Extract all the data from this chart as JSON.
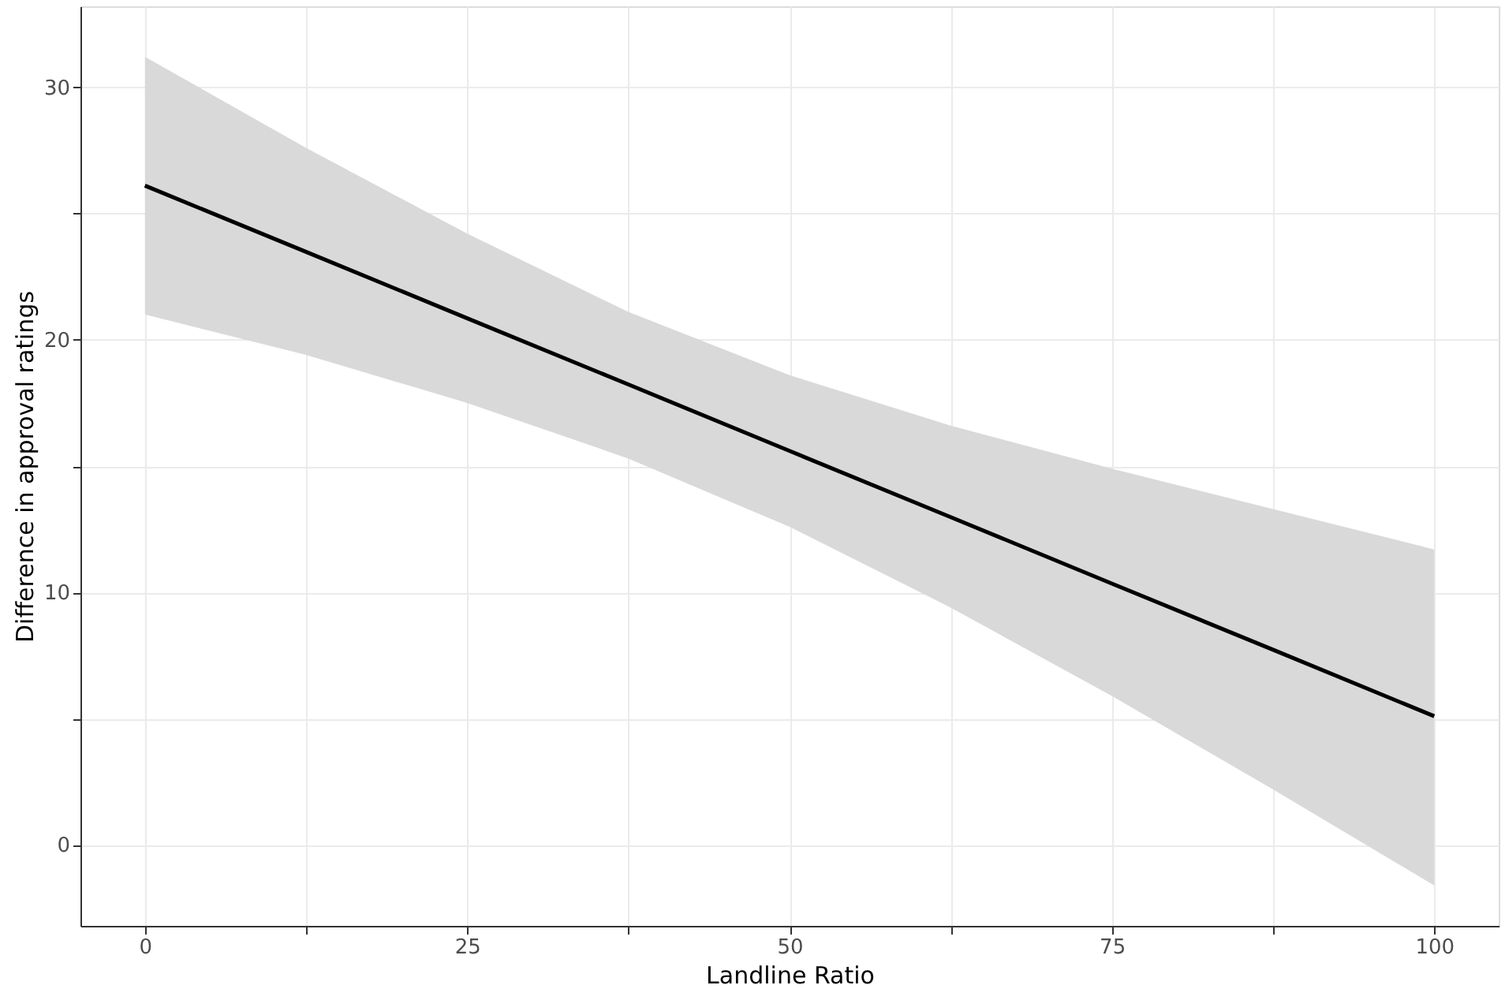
{
  "chart_data": {
    "type": "line",
    "xlabel": "Landline Ratio",
    "ylabel": "Difference in approval ratings",
    "x": [
      0,
      12.5,
      25,
      37.5,
      50,
      62.5,
      75,
      87.5,
      100
    ],
    "series": [
      {
        "color": "#000000",
        "values": [
          26.1,
          23.48,
          20.85,
          18.23,
          15.6,
          12.98,
          10.35,
          7.73,
          5.1
        ],
        "lower": [
          21.0,
          19.4,
          17.5,
          15.3,
          12.6,
          9.4,
          5.9,
          2.2,
          -1.6
        ],
        "upper": [
          31.2,
          27.6,
          24.2,
          21.1,
          18.6,
          16.6,
          14.9,
          13.3,
          11.7
        ]
      }
    ],
    "xlim": [
      -5,
      105
    ],
    "ylim": [
      -3.2,
      33.2
    ],
    "xticks": [
      0,
      {
        "value": 12.5,
        "label": null
      },
      25,
      {
        "value": 37.5,
        "label": null
      },
      50,
      {
        "value": 62.5,
        "label": null
      },
      75,
      {
        "value": 87.5,
        "label": null
      },
      100
    ],
    "yticks": [
      0,
      {
        "value": 5,
        "label": null
      },
      10,
      {
        "value": 15,
        "label": null
      },
      20,
      {
        "value": 25,
        "label": null
      },
      30
    ],
    "grid": true,
    "marker": "none",
    "line_style": "solid"
  }
}
